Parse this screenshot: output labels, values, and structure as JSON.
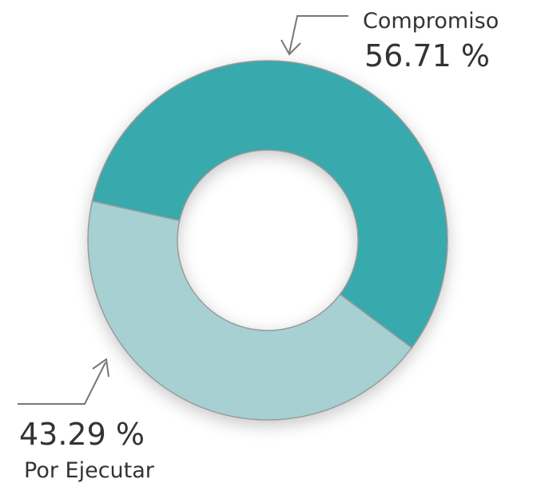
{
  "chart_data": {
    "type": "donut",
    "categories": [
      "Compromiso",
      "Por Ejecutar"
    ],
    "values": [
      56.71,
      43.29
    ],
    "value_labels": [
      "56.71 %",
      "43.29 %"
    ],
    "colors": [
      "#37a9ac",
      "#a6d0d1"
    ]
  }
}
